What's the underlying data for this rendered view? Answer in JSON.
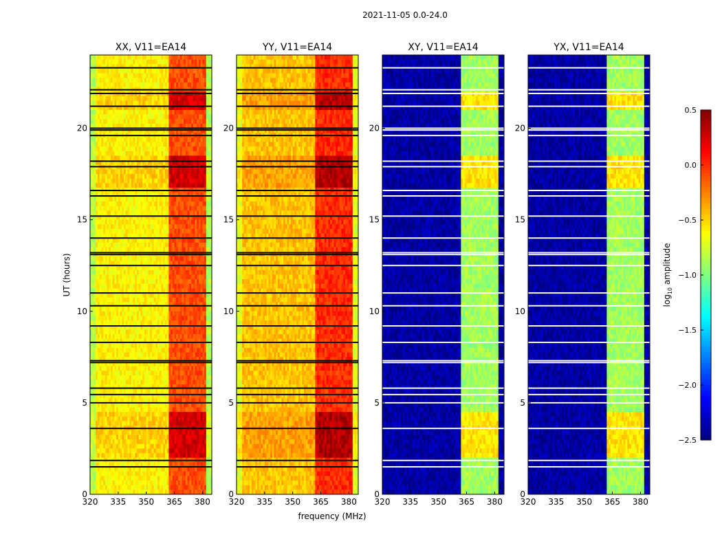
{
  "chart_data": {
    "type": "heatmap",
    "suptitle": "2021-11-05 0.0-24.0",
    "xlabel": "frequency (MHz)",
    "ylabel": "UT (hours)",
    "xlim": [
      320,
      385
    ],
    "ylim": [
      0,
      24
    ],
    "xticks": [
      "320",
      "335",
      "350",
      "365",
      "380"
    ],
    "xtick_values": [
      320,
      335,
      350,
      365,
      380
    ],
    "yticks": [
      "0",
      "5",
      "10",
      "15",
      "20"
    ],
    "ytick_values": [
      0,
      5,
      10,
      15,
      20
    ],
    "colorbar": {
      "label_main": "log",
      "label_sub": "10",
      "label_rest": " amplitude",
      "range": [
        -2.5,
        0.5
      ],
      "ticks": [
        "0.5",
        "0.0",
        "−0.5",
        "−1.0",
        "−1.5",
        "−2.0",
        "−2.5"
      ],
      "tick_values": [
        0.5,
        0.0,
        -0.5,
        -1.0,
        -1.5,
        -2.0,
        -2.5
      ],
      "colormap": "jet"
    },
    "panels": [
      {
        "title": "XX, V11=EA14",
        "background": -0.6,
        "band": -0.1,
        "flag_color": "#000000"
      },
      {
        "title": "YY, V11=EA14",
        "background": -0.45,
        "band": 0.0,
        "flag_color": "#000000"
      },
      {
        "title": "XY, V11=EA14",
        "background": -2.4,
        "band": -0.9,
        "flag_color": "#ffffff"
      },
      {
        "title": "YX, V11=EA14",
        "background": -2.4,
        "band": -0.9,
        "flag_color": "#ffffff"
      }
    ],
    "band_segments_mhz": [
      [
        362,
        366.5
      ],
      [
        367.5,
        371.5
      ],
      [
        372.5,
        376.5
      ],
      [
        377.5,
        381.5
      ]
    ],
    "bright_hours": [
      [
        21.1,
        21.9
      ],
      [
        2.0,
        4.5
      ],
      [
        16.8,
        18.4
      ]
    ],
    "flagged_hours": [
      1.5,
      1.85,
      3.6,
      5.0,
      5.45,
      5.8,
      7.2,
      7.3,
      8.3,
      9.2,
      10.3,
      11.0,
      12.5,
      13.1,
      13.2,
      14.0,
      15.2,
      16.3,
      16.6,
      17.9,
      18.2,
      19.6,
      19.9,
      20.0,
      21.2,
      21.9,
      22.1,
      23.3
    ]
  }
}
